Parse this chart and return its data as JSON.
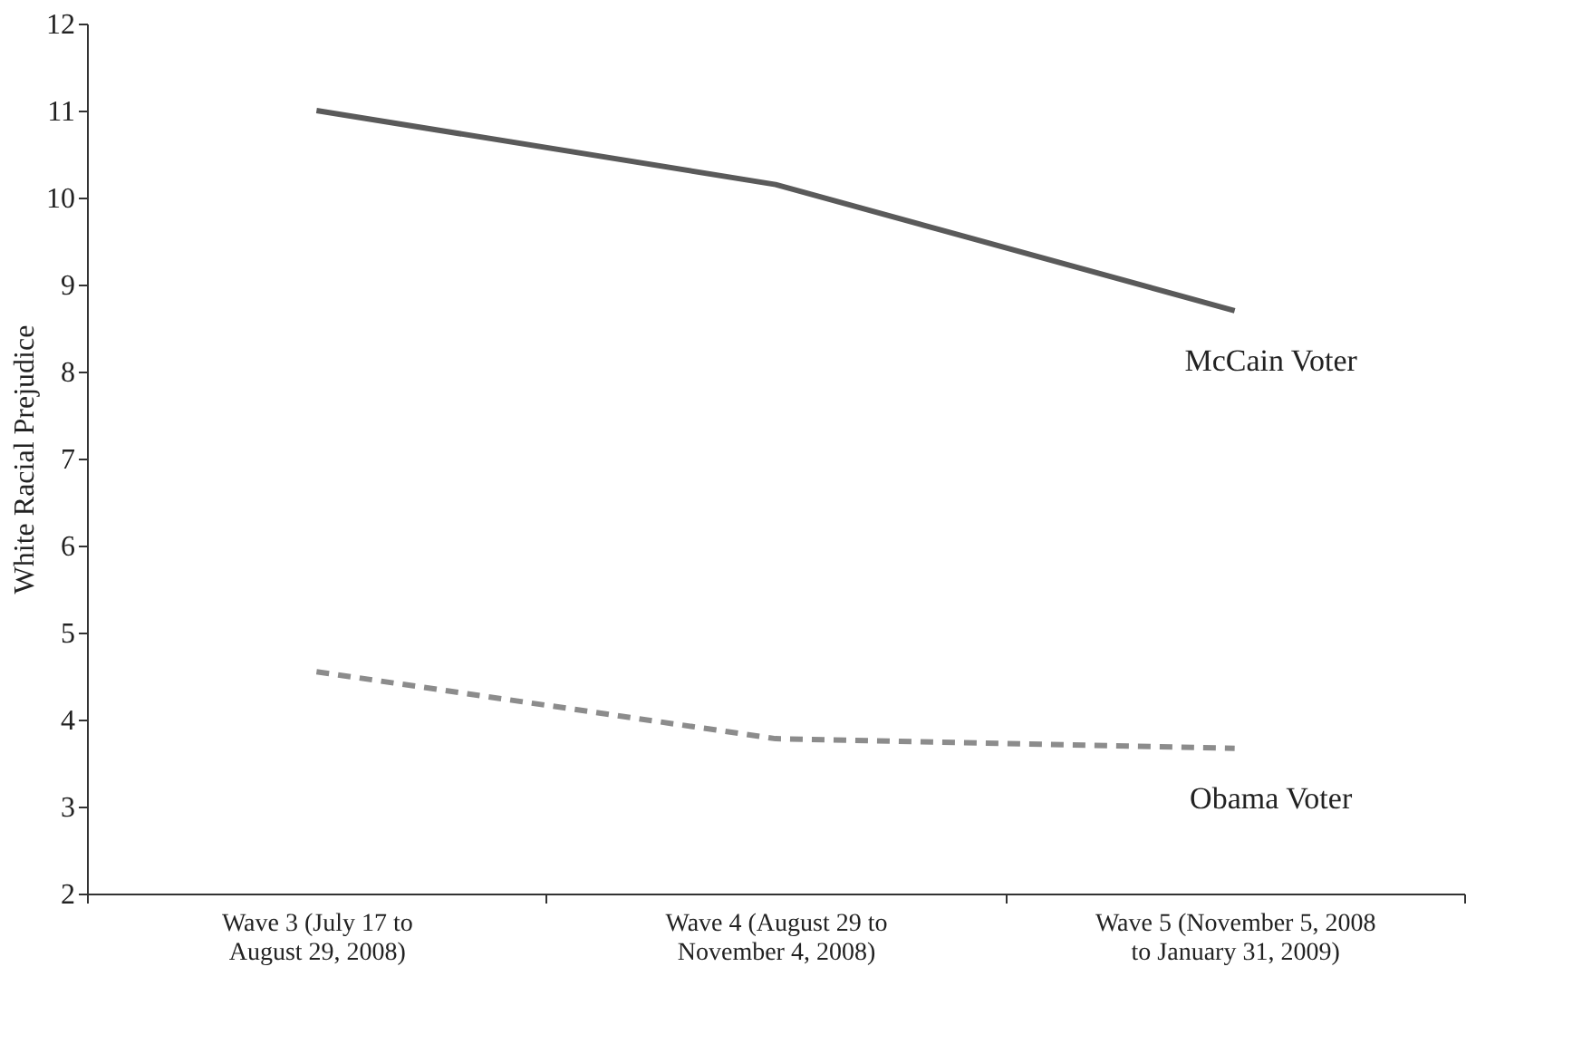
{
  "chart_data": {
    "type": "line",
    "ylabel": "White Racial Prejudice",
    "categories": [
      "Wave 3 (July 17 to August 29, 2008)",
      "Wave 4 (August 29 to November 4, 2008)",
      "Wave 5 (November 5, 2008 to January 31, 2009)"
    ],
    "series": [
      {
        "name": "McCain Voter",
        "color": "#5a5a5a",
        "line_style": "solid",
        "values": [
          11.0,
          10.15,
          8.7
        ]
      },
      {
        "name": "Obama Voter",
        "color": "#8c8c8c",
        "line_style": "dashed",
        "values": [
          4.55,
          3.78,
          3.67
        ]
      }
    ],
    "ylim": [
      2,
      12
    ],
    "yticks": [
      2,
      3,
      4,
      5,
      6,
      7,
      8,
      9,
      10,
      11,
      12
    ],
    "grid": false,
    "marker": "none"
  }
}
